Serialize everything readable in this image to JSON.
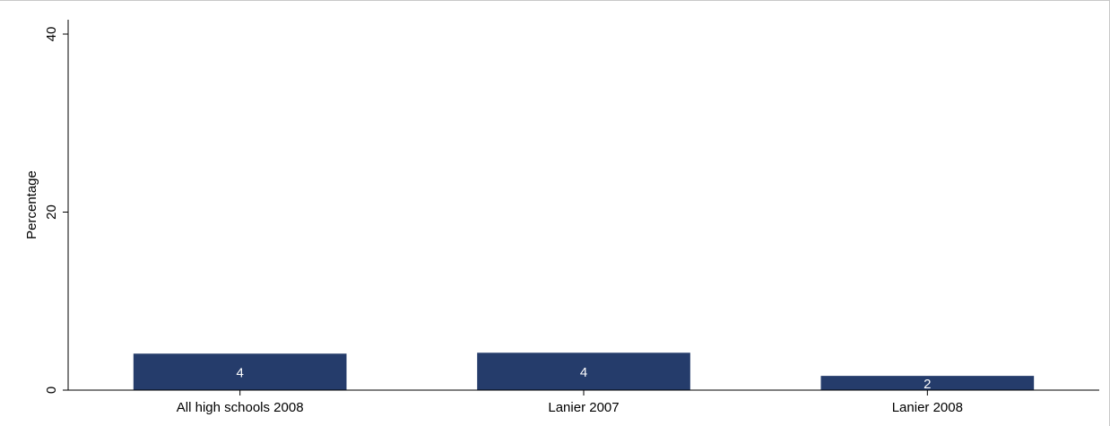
{
  "chart_data": {
    "type": "bar",
    "categories": [
      "All high schools 2008",
      "Lanier 2007",
      "Lanier 2008"
    ],
    "values": [
      4.1,
      4.2,
      1.6
    ],
    "data_labels": [
      "4",
      "4",
      "2"
    ],
    "ylabel": "Percentage",
    "xlabel": "",
    "ylim": [
      0,
      40
    ],
    "yticks": [
      0,
      20,
      40
    ],
    "ytick_labels": [
      "0",
      "20",
      "40"
    ],
    "grid": false,
    "bar_color": "#253c6b",
    "data_label_color": "#ffffff"
  }
}
